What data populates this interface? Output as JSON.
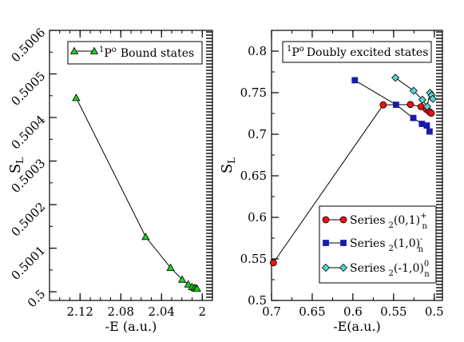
{
  "chart_data": [
    {
      "type": "line",
      "xlabel": "-E (a.u.)",
      "ylabel": "S",
      "ylabel_sub": "L",
      "xlim": [
        2.15,
        1.99
      ],
      "ylim": [
        0.49998,
        0.5006
      ],
      "x_ticks": [
        2.12,
        2.08,
        2.04,
        2
      ],
      "x_tick_labels": [
        "2.12",
        "2.08",
        "2.04",
        "2"
      ],
      "y_ticks": [
        0.5,
        0.5001,
        0.5002,
        0.5003,
        0.5004,
        0.5005,
        0.5006
      ],
      "y_tick_labels": [
        "0.5",
        "0.5001",
        "0.5002",
        "0.5003",
        "0.5004",
        "0.5005",
        "0.5006"
      ],
      "legend_position": "top",
      "series": [
        {
          "name_sup": "1",
          "name_main": "P",
          "name_sup2": "o",
          "name_rest": "Bound states",
          "color": "#22cc22",
          "marker": "triangle",
          "points": [
            [
              2.1238,
              0.500445
            ],
            [
              2.0556,
              0.500126
            ],
            [
              2.0311,
              0.500055
            ],
            [
              2.0197,
              0.500028
            ],
            [
              2.0137,
              0.500017
            ],
            [
              2.0101,
              0.500011
            ],
            [
              2.0078,
              0.500009
            ],
            [
              2.0062,
              0.500008
            ],
            [
              2.0051,
              0.500007
            ]
          ]
        }
      ]
    },
    {
      "type": "line",
      "xlabel": "-E(a.u.)",
      "ylabel": "S",
      "ylabel_sub": "L",
      "xlim": [
        0.7,
        0.49
      ],
      "ylim": [
        0.5,
        0.825
      ],
      "x_ticks": [
        0.7,
        0.65,
        0.6,
        0.55,
        0.5
      ],
      "x_tick_labels": [
        "0.7",
        "0.65",
        "0.6",
        "0.55",
        "0.5"
      ],
      "y_ticks": [
        0.5,
        0.55,
        0.6,
        0.65,
        0.7,
        0.75,
        0.8
      ],
      "y_tick_labels": [
        "0.5",
        "0.55",
        "0.6",
        "0.65",
        "0.7",
        "0.75",
        "0.8"
      ],
      "title_box": {
        "sup": "1",
        "main": "P",
        "sup2": "o",
        "rest": "Doubly excited states"
      },
      "legend_position": "bottom-right",
      "series": [
        {
          "name_prefix": "Series",
          "name_sub": "2",
          "name_main": "(0,1)",
          "name_sup": "+",
          "name_sub2": "n",
          "color": "#ee1111",
          "marker": "circle",
          "points": [
            [
              0.6977,
              0.5453
            ],
            [
              0.5628,
              0.7353
            ],
            [
              0.5294,
              0.7358
            ],
            [
              0.5163,
              0.7332
            ],
            [
              0.5098,
              0.73
            ],
            [
              0.5061,
              0.7272
            ],
            [
              0.5038,
              0.7254
            ]
          ]
        },
        {
          "name_prefix": "Series",
          "name_sub": "2",
          "name_main": "(1,0)",
          "name_sup": "-",
          "name_sub2": "n",
          "color": "#1a1aaa",
          "marker": "square",
          "points": [
            [
              0.5977,
              0.765
            ],
            [
              0.547,
              0.7355
            ],
            [
              0.5258,
              0.7196
            ],
            [
              0.5152,
              0.7125
            ],
            [
              0.5092,
              0.7105
            ],
            [
              0.5058,
              0.7033
            ]
          ]
        },
        {
          "name_prefix": "Series",
          "name_sub": "2",
          "name_main": "(-1,0)",
          "name_sup": "0",
          "name_sub2": "n",
          "color": "#55d5cf",
          "marker": "diamond",
          "points": [
            [
              0.5478,
              0.768
            ],
            [
              0.5254,
              0.7523
            ],
            [
              0.5147,
              0.7415
            ],
            [
              0.5088,
              0.7333
            ],
            [
              0.5053,
              0.7499
            ],
            [
              0.5032,
              0.7469
            ],
            [
              0.5018,
              0.7426
            ]
          ]
        }
      ]
    }
  ]
}
